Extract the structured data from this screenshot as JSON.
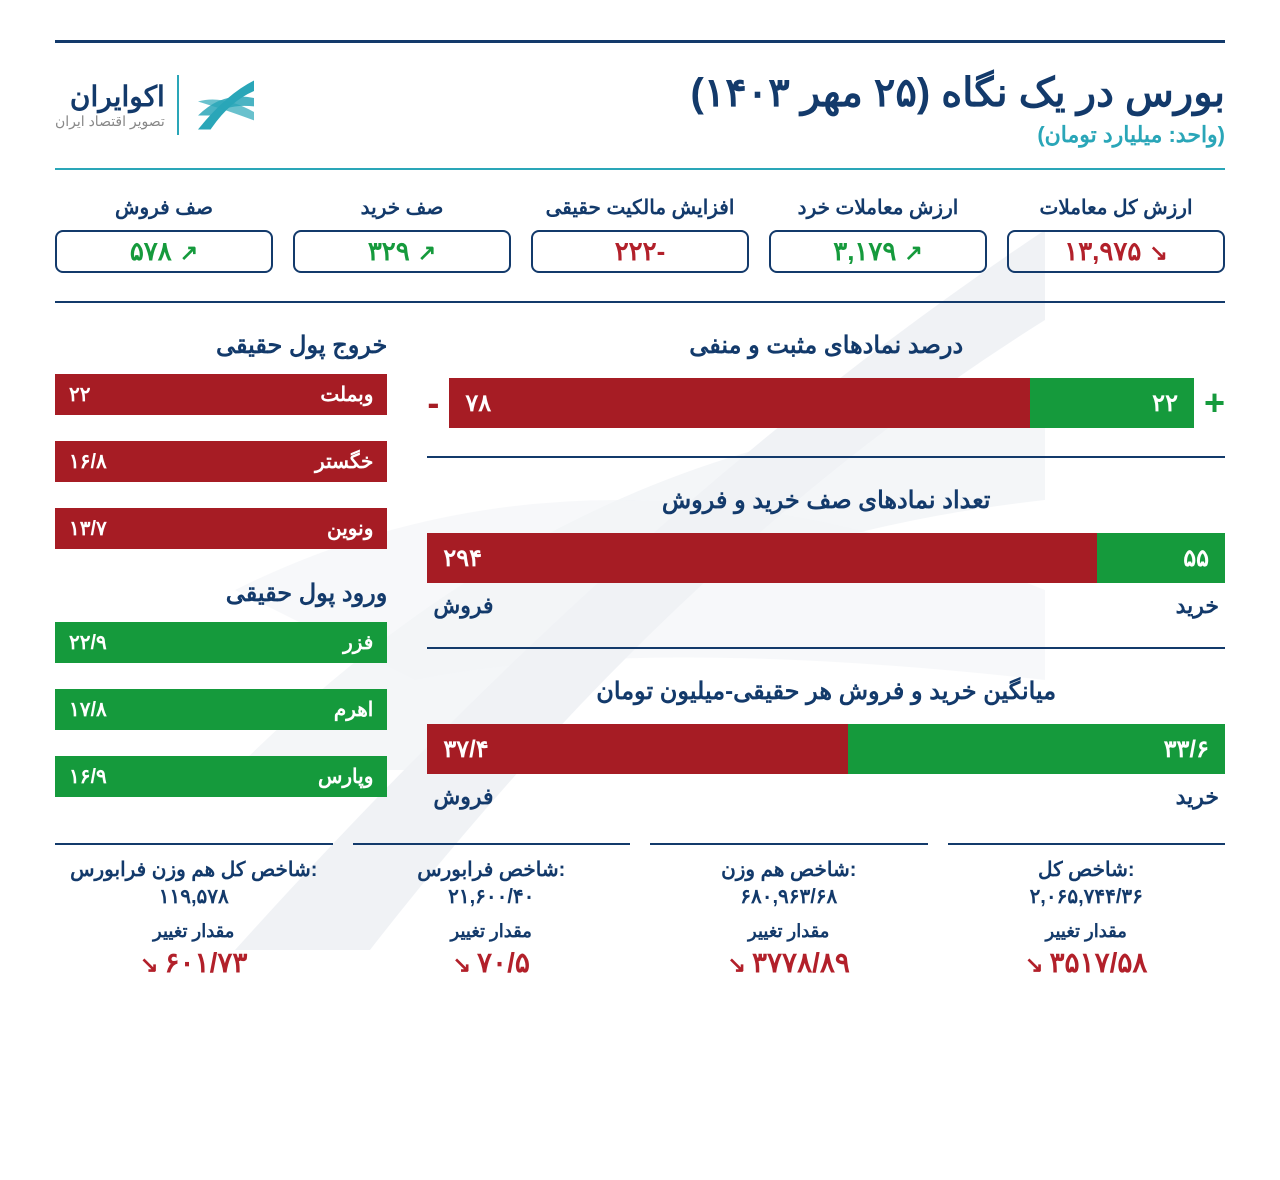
{
  "colors": {
    "navy": "#133a6b",
    "teal": "#2aa6b8",
    "red": "#a61c24",
    "red_text": "#b2202a",
    "green": "#159a3c",
    "white": "#ffffff",
    "gray": "#888888"
  },
  "header": {
    "title": "بورس در یک نگاه (۲۵ مهر ۱۴۰۳)",
    "subtitle": "(واحد: میلیارد تومان)",
    "brand": "اکوایران",
    "tagline": "تصویر اقتصاد ایران"
  },
  "metrics": [
    {
      "label": "ارزش کل معاملات",
      "value": "۱۳,۹۷۵",
      "color": "red",
      "arrow": "down"
    },
    {
      "label": "ارزش معاملات خرد",
      "value": "۳,۱۷۹",
      "color": "green",
      "arrow": "up"
    },
    {
      "label": "افزایش مالکیت حقیقی",
      "value": "-۲۲۲",
      "color": "red",
      "arrow": "none"
    },
    {
      "label": "صف خرید",
      "value": "۳۲۹",
      "color": "green",
      "arrow": "up"
    },
    {
      "label": "صف فروش",
      "value": "۵۷۸",
      "color": "green",
      "arrow": "up"
    }
  ],
  "chart1": {
    "title": "درصد نمادهای مثبت و منفی",
    "neg_value": "۷۸",
    "neg_pct": 78,
    "pos_value": "۲۲",
    "pos_pct": 22,
    "sign_minus": "-",
    "sign_plus": "+"
  },
  "chart2": {
    "title": "تعداد نمادهای صف خرید و فروش",
    "neg_value": "۲۹۴",
    "neg_pct": 84,
    "pos_value": "۵۵",
    "pos_pct": 16,
    "left_label": "فروش",
    "right_label": "خرید"
  },
  "chart3": {
    "title": "میانگین خرید و فروش هر حقیقی-میلیون تومان",
    "neg_value": "۳۷/۴",
    "neg_pct": 52.7,
    "pos_value": "۳۳/۶",
    "pos_pct": 47.3,
    "left_label": "فروش",
    "right_label": "خرید"
  },
  "outflow": {
    "title": "خروج پول حقیقی",
    "items": [
      {
        "name": "وبملت",
        "value": "۲۲"
      },
      {
        "name": "خگستر",
        "value": "۱۶/۸"
      },
      {
        "name": "ونوین",
        "value": "۱۳/۷"
      }
    ]
  },
  "inflow": {
    "title": "ورود پول حقیقی",
    "items": [
      {
        "name": "فزر",
        "value": "۲۲/۹"
      },
      {
        "name": "اهرم",
        "value": "۱۷/۸"
      },
      {
        "name": "وپارس",
        "value": "۱۶/۹"
      }
    ]
  },
  "footer": [
    {
      "label": "شاخص کل هم وزن فرابورس:",
      "value": "۱۱۹,۵۷۸",
      "change_label": "مقدار تغییر",
      "change": "۶۰۱/۷۳",
      "color": "red",
      "arrow": "down"
    },
    {
      "label": "شاخص فرابورس:",
      "value": "۲۱,۶۰۰/۴۰",
      "change_label": "مقدار تغییر",
      "change": "۷۰/۵",
      "color": "red",
      "arrow": "down"
    },
    {
      "label": "شاخص هم وزن:",
      "value": "۶۸۰,۹۶۳/۶۸",
      "change_label": "مقدار تغییر",
      "change": "۳۷۷۸/۸۹",
      "color": "red",
      "arrow": "down"
    },
    {
      "label": "شاخص کل:",
      "value": "۲,۰۶۵,۷۴۴/۳۶",
      "change_label": "مقدار تغییر",
      "change": "۳۵۱۷/۵۸",
      "color": "red",
      "arrow": "down"
    }
  ]
}
